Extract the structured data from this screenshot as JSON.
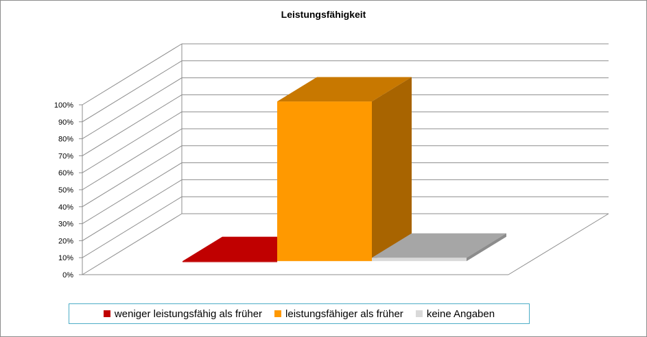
{
  "chart_data": {
    "type": "bar",
    "title": "Leistungsfähigkeit",
    "categories": [
      "weniger leistungsfähig als früher",
      "leistungsfähiger als früher",
      "keine Angaben"
    ],
    "values": [
      0,
      94,
      2
    ],
    "unit": "%",
    "ylim": [
      0,
      100
    ],
    "yticks": [
      "0%",
      "10%",
      "20%",
      "30%",
      "40%",
      "50%",
      "60%",
      "70%",
      "80%",
      "90%",
      "100%"
    ],
    "grid": true,
    "legend_position": "bottom",
    "colors": {
      "weniger leistungsfähig als früher": "#c00000",
      "leistungsfähiger als früher": "#ff9900",
      "keine Angaben": "#d9d9d9"
    }
  }
}
